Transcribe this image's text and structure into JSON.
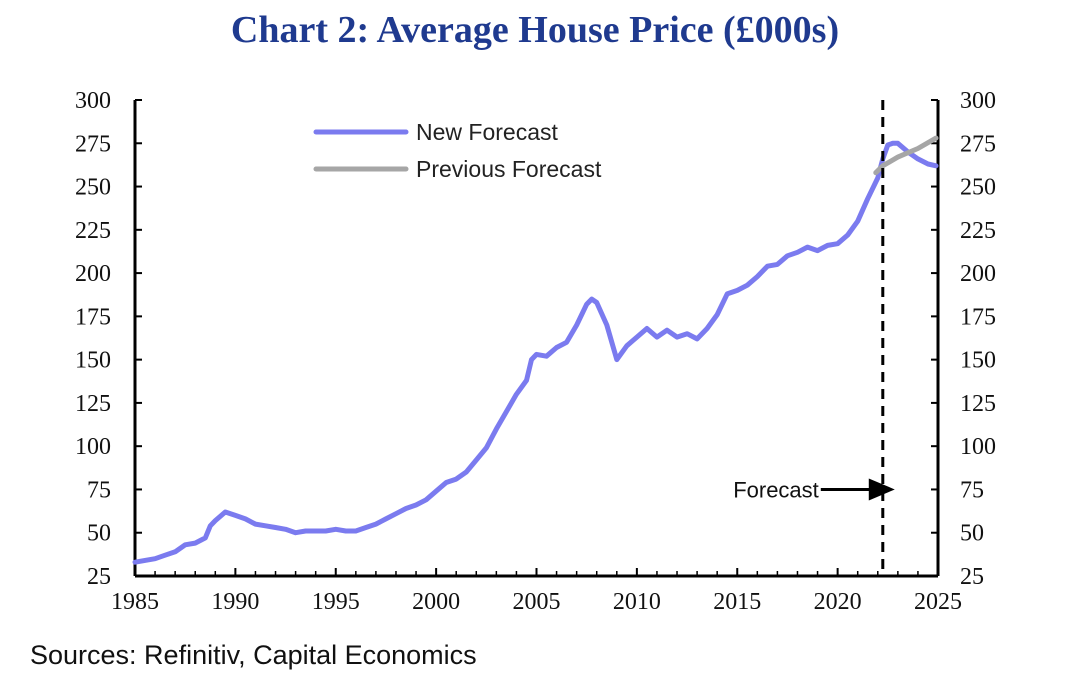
{
  "page": {
    "title": "Chart 2: Average House Price (£000s)",
    "source": "Sources: Refinitiv, Capital Economics"
  },
  "chart_data": {
    "type": "line",
    "title": "Chart 2: Average House Price (£000s)",
    "xlabel": "",
    "ylabel": "£000s",
    "xlim": [
      1985,
      2025
    ],
    "ylim": [
      25,
      300
    ],
    "x_ticks": [
      1985,
      1990,
      1995,
      2000,
      2005,
      2010,
      2015,
      2020,
      2025
    ],
    "y_ticks": [
      25,
      50,
      75,
      100,
      125,
      150,
      175,
      200,
      225,
      250,
      275,
      300
    ],
    "legend_position": "top-left",
    "forecast_year": 2022.25,
    "annotation": "Forecast",
    "series": [
      {
        "name": "New Forecast",
        "color": "#7b7bef",
        "points": [
          [
            1985.0,
            33
          ],
          [
            1985.5,
            34
          ],
          [
            1986.0,
            35
          ],
          [
            1986.5,
            37
          ],
          [
            1987.0,
            39
          ],
          [
            1987.5,
            43
          ],
          [
            1988.0,
            44
          ],
          [
            1988.5,
            47
          ],
          [
            1988.75,
            54
          ],
          [
            1989.0,
            57
          ],
          [
            1989.5,
            62
          ],
          [
            1990.0,
            60
          ],
          [
            1990.5,
            58
          ],
          [
            1991.0,
            55
          ],
          [
            1991.5,
            54
          ],
          [
            1992.0,
            53
          ],
          [
            1992.5,
            52
          ],
          [
            1993.0,
            50
          ],
          [
            1993.5,
            51
          ],
          [
            1994.0,
            51
          ],
          [
            1994.5,
            51
          ],
          [
            1995.0,
            52
          ],
          [
            1995.5,
            51
          ],
          [
            1996.0,
            51
          ],
          [
            1996.5,
            53
          ],
          [
            1997.0,
            55
          ],
          [
            1997.5,
            58
          ],
          [
            1998.0,
            61
          ],
          [
            1998.5,
            64
          ],
          [
            1999.0,
            66
          ],
          [
            1999.5,
            69
          ],
          [
            2000.0,
            74
          ],
          [
            2000.5,
            79
          ],
          [
            2001.0,
            81
          ],
          [
            2001.5,
            85
          ],
          [
            2002.0,
            92
          ],
          [
            2002.5,
            99
          ],
          [
            2003.0,
            110
          ],
          [
            2003.5,
            120
          ],
          [
            2004.0,
            130
          ],
          [
            2004.5,
            138
          ],
          [
            2004.75,
            150
          ],
          [
            2005.0,
            153
          ],
          [
            2005.5,
            152
          ],
          [
            2006.0,
            157
          ],
          [
            2006.5,
            160
          ],
          [
            2007.0,
            170
          ],
          [
            2007.5,
            182
          ],
          [
            2007.75,
            185
          ],
          [
            2008.0,
            183
          ],
          [
            2008.5,
            170
          ],
          [
            2009.0,
            150
          ],
          [
            2009.5,
            158
          ],
          [
            2010.0,
            163
          ],
          [
            2010.5,
            168
          ],
          [
            2011.0,
            163
          ],
          [
            2011.5,
            167
          ],
          [
            2012.0,
            163
          ],
          [
            2012.5,
            165
          ],
          [
            2013.0,
            162
          ],
          [
            2013.5,
            168
          ],
          [
            2014.0,
            176
          ],
          [
            2014.5,
            188
          ],
          [
            2015.0,
            190
          ],
          [
            2015.5,
            193
          ],
          [
            2016.0,
            198
          ],
          [
            2016.5,
            204
          ],
          [
            2017.0,
            205
          ],
          [
            2017.5,
            210
          ],
          [
            2018.0,
            212
          ],
          [
            2018.5,
            215
          ],
          [
            2019.0,
            213
          ],
          [
            2019.5,
            216
          ],
          [
            2020.0,
            217
          ],
          [
            2020.5,
            222
          ],
          [
            2021.0,
            230
          ],
          [
            2021.5,
            243
          ],
          [
            2022.0,
            255
          ],
          [
            2022.25,
            266
          ],
          [
            2022.5,
            274
          ],
          [
            2022.75,
            275
          ],
          [
            2023.0,
            275
          ],
          [
            2023.5,
            270
          ],
          [
            2024.0,
            266
          ],
          [
            2024.5,
            263
          ],
          [
            2024.9,
            262
          ]
        ]
      },
      {
        "name": "Previous Forecast",
        "color": "#a6a6a6",
        "points": [
          [
            2021.9,
            258
          ],
          [
            2022.25,
            262
          ],
          [
            2023.0,
            267
          ],
          [
            2024.0,
            272
          ],
          [
            2024.9,
            278
          ]
        ]
      }
    ]
  }
}
